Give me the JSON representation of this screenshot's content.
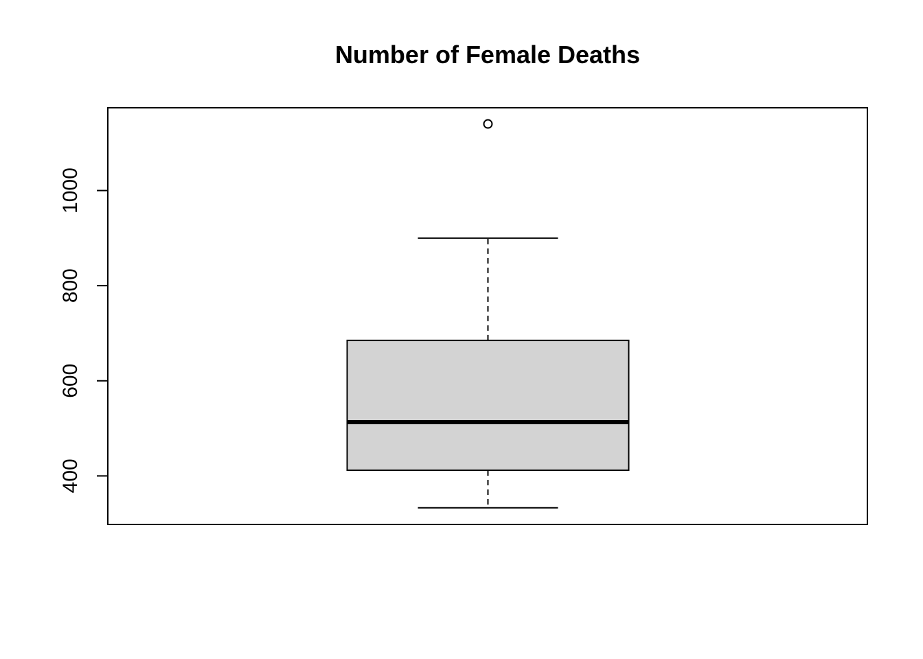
{
  "chart_data": {
    "type": "boxplot",
    "title": "Number of Female Deaths",
    "xlabel": "",
    "ylabel": "",
    "ylim": [
      298,
      1174
    ],
    "yticks": [
      400,
      600,
      800,
      1000
    ],
    "box": {
      "whisker_low": 333,
      "q1": 412,
      "median": 513,
      "q3": 685,
      "whisker_high": 900,
      "outliers": [
        1140
      ]
    },
    "grid": false,
    "legend": "none",
    "colors": {
      "box_fill": "#d3d3d3",
      "stroke": "#000000",
      "background": "#ffffff"
    }
  }
}
